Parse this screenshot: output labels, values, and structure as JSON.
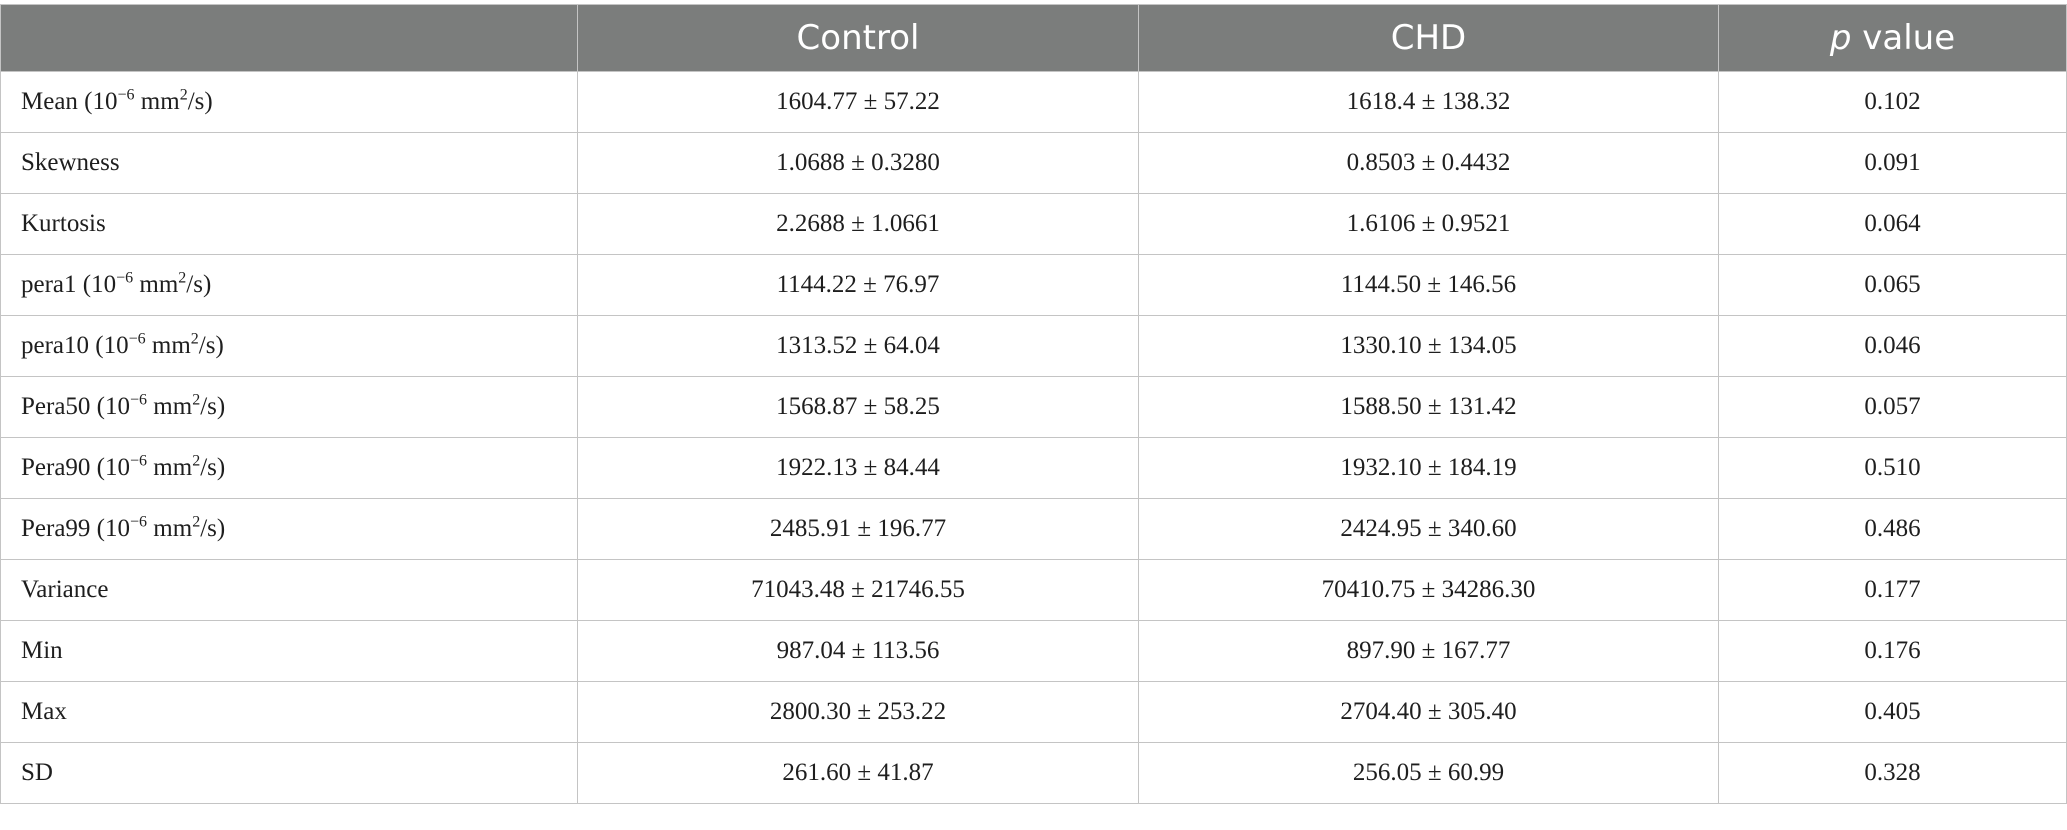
{
  "table": {
    "headers": {
      "label": "",
      "control": "Control",
      "chd": "CHD",
      "p_italic": "p",
      "p_rest": " value"
    },
    "rows": [
      {
        "label": "Mean",
        "unit": true,
        "control": "1604.77 ± 57.22",
        "chd": "1618.4 ± 138.32",
        "p": "0.102"
      },
      {
        "label": "Skewness",
        "unit": false,
        "control": "1.0688 ± 0.3280",
        "chd": "0.8503 ± 0.4432",
        "p": "0.091"
      },
      {
        "label": "Kurtosis",
        "unit": false,
        "control": "2.2688 ± 1.0661",
        "chd": "1.6106 ± 0.9521",
        "p": "0.064"
      },
      {
        "label": "pera1",
        "unit": true,
        "control": "1144.22 ± 76.97",
        "chd": "1144.50 ± 146.56",
        "p": "0.065"
      },
      {
        "label": "pera10",
        "unit": true,
        "control": "1313.52 ± 64.04",
        "chd": "1330.10 ± 134.05",
        "p": "0.046"
      },
      {
        "label": "Pera50",
        "unit": true,
        "control": "1568.87 ± 58.25",
        "chd": "1588.50 ± 131.42",
        "p": "0.057"
      },
      {
        "label": "Pera90",
        "unit": true,
        "control": "1922.13 ± 84.44",
        "chd": "1932.10 ± 184.19",
        "p": "0.510"
      },
      {
        "label": "Pera99",
        "unit": true,
        "control": "2485.91 ± 196.77",
        "chd": "2424.95 ± 340.60",
        "p": "0.486"
      },
      {
        "label": "Variance",
        "unit": false,
        "control": "71043.48 ± 21746.55",
        "chd": "70410.75 ± 34286.30",
        "p": "0.177"
      },
      {
        "label": "Min",
        "unit": false,
        "control": "987.04 ± 113.56",
        "chd": "897.90 ± 167.77",
        "p": "0.176"
      },
      {
        "label": "Max",
        "unit": false,
        "control": "2800.30 ± 253.22",
        "chd": "2704.40 ± 305.40",
        "p": "0.405"
      },
      {
        "label": "SD",
        "unit": false,
        "control": "261.60 ± 41.87",
        "chd": "256.05 ± 60.99",
        "p": "0.328"
      }
    ],
    "unit_parts": {
      "open": " (10",
      "exp": "−6",
      "mid": " mm",
      "sq": "2",
      "close": "/s)"
    }
  }
}
